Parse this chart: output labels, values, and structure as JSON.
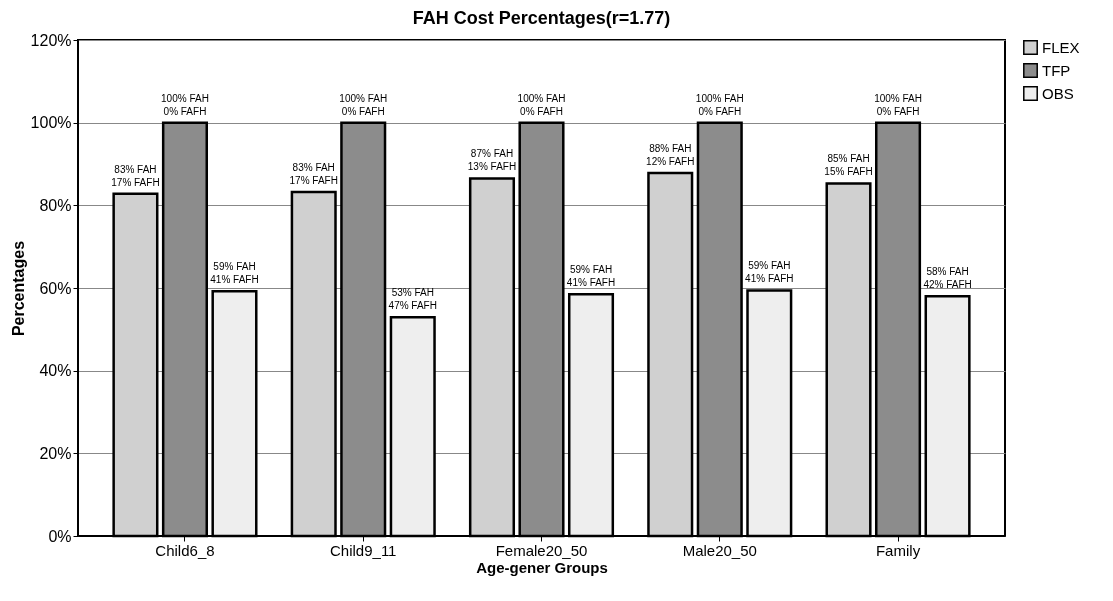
{
  "chart_data": {
    "type": "bar",
    "title": "FAH Cost Percentages(r=1.77)",
    "xlabel": "Age-gener Groups",
    "ylabel": "Percentages",
    "categories": [
      "Child6_8",
      "Child9_11",
      "Female20_50",
      "Male20_50",
      "Family"
    ],
    "series": [
      {
        "name": "FLEX",
        "color": "#d0d0d0",
        "values": [
          82.8,
          83.2,
          86.5,
          87.8,
          85.3
        ],
        "value_labels": [
          "83%  FAH\n17% FAFH",
          "83%  FAH\n17% FAFH",
          "87% FAH\n13% FAFH",
          "88% FAH\n12% FAFH",
          "85%  FAH\n15% FAFH"
        ]
      },
      {
        "name": "TFP",
        "color": "#8c8c8c",
        "values": [
          100,
          100,
          100,
          100,
          100
        ],
        "value_labels": [
          "100% FAH\n0% FAFH",
          "100% FAH\n0% FAFH",
          "100% FAH\n0% FAFH",
          "100% FAH\n0% FAFH",
          "100% FAH\n0% FAFH"
        ]
      },
      {
        "name": "OBS",
        "color": "#eeeeee",
        "values": [
          59.2,
          52.9,
          58.5,
          59.4,
          58.0
        ],
        "value_labels": [
          "59% FAH\n41% FAFH",
          "53% FAH\n47% FAFH",
          "59% FAH\n41% FAFH",
          "59% FAH\n41% FAFH",
          "58%  FAH\n42% FAFH"
        ]
      }
    ],
    "ylim": [
      0,
      120
    ],
    "yticks": [
      {
        "value": 0,
        "label": "0%"
      },
      {
        "value": 20,
        "label": "20%"
      },
      {
        "value": 40,
        "label": "40%"
      },
      {
        "value": 60,
        "label": "60%"
      },
      {
        "value": 80,
        "label": "80%"
      },
      {
        "value": 100,
        "label": "100%"
      },
      {
        "value": 120,
        "label": "120%"
      }
    ],
    "grid": "y",
    "legend": "right"
  }
}
